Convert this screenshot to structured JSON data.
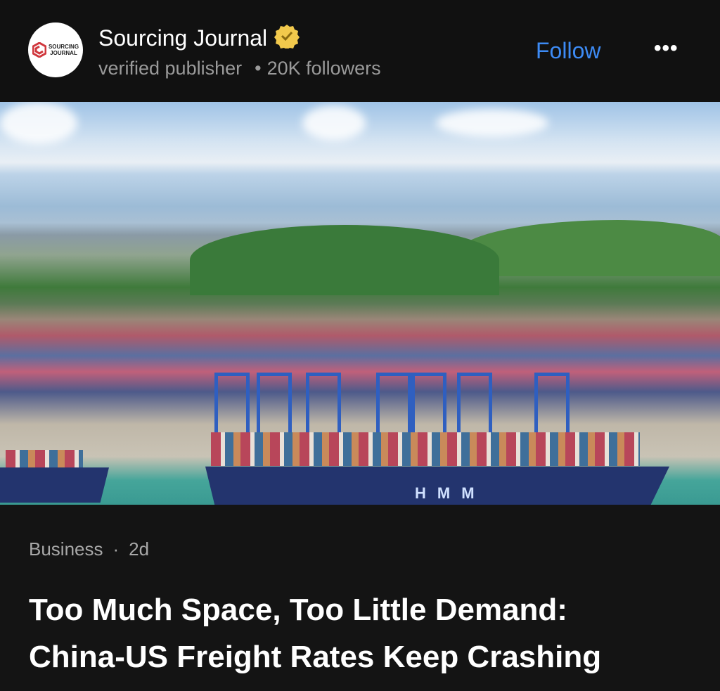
{
  "publisher": {
    "name": "Sourcing Journal",
    "logo_text": "SOURCING JOURNAL",
    "subtitle": "verified publisher",
    "separator": "•",
    "followers": "20K followers",
    "verified_badge_icon": "verified-check-badge",
    "badge_color": "#f2c94c"
  },
  "actions": {
    "follow_label": "Follow",
    "more_label": "•••",
    "follow_color": "#3d8bf5"
  },
  "image": {
    "ship_marking": "HMM"
  },
  "article": {
    "category": "Business",
    "separator": "·",
    "age": "2d",
    "title_line1": "Too Much Space, Too Little Demand:",
    "title_line2": "China-US Freight Rates Keep Crashing"
  }
}
